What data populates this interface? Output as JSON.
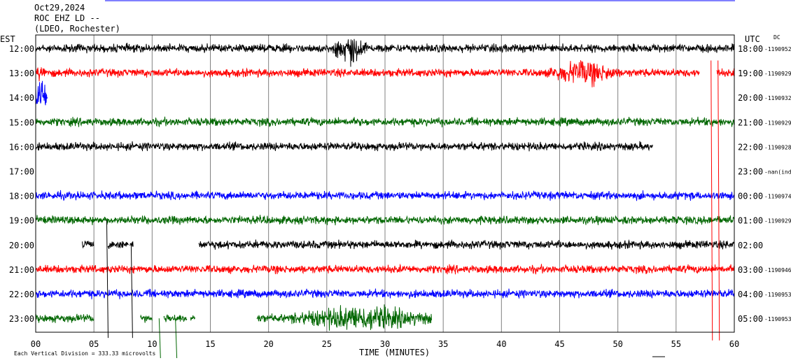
{
  "chart_data": {
    "type": "line",
    "title_lines": [
      "Oct29,2024",
      "ROC EHZ LD --",
      "(LDEO, Rochester)"
    ],
    "left_axis_label": "EST",
    "right_axis_label": "UTC",
    "right_corner_label": "DC",
    "xlabel": "TIME (MINUTES)",
    "xlim": [
      0,
      60
    ],
    "x_ticks": [
      "00",
      "05",
      "10",
      "15",
      "20",
      "25",
      "30",
      "35",
      "40",
      "45",
      "50",
      "55",
      "60"
    ],
    "footer_note": "Each Vertical Division = 333.33 microvolts",
    "grid": true,
    "colors": {
      "black": "#000000",
      "red": "#ff0000",
      "blue": "#0000ff",
      "green": "#006600",
      "grid": "#808080"
    },
    "rows": [
      {
        "est": "12:00",
        "utc": "18:00",
        "dc": "-1190952",
        "color": "black",
        "segments": [
          [
            0,
            60
          ]
        ],
        "amp": 1.0,
        "bursts": [
          {
            "start": 25.5,
            "end": 28.5,
            "amp": 4.0
          }
        ]
      },
      {
        "est": "13:00",
        "utc": "19:00",
        "dc": "-1190929",
        "color": "red",
        "segments": [
          [
            0,
            57
          ],
          [
            58.5,
            60
          ]
        ],
        "amp": 1.0,
        "bursts": [
          {
            "start": 44,
            "end": 50,
            "amp": 3.5
          },
          {
            "start": 0,
            "end": 1,
            "amp": 2.5
          }
        ]
      },
      {
        "est": "14:00",
        "utc": "20:00",
        "dc": "-1190932",
        "color": "blue",
        "segments": [
          [
            0,
            1
          ]
        ],
        "amp": 1.0,
        "bursts": [
          {
            "start": 0,
            "end": 1,
            "amp": 6.0
          }
        ]
      },
      {
        "est": "15:00",
        "utc": "21:00",
        "dc": "-1190929",
        "color": "green",
        "segments": [
          [
            0,
            60
          ]
        ],
        "amp": 1.0,
        "bursts": []
      },
      {
        "est": "16:00",
        "utc": "22:00",
        "dc": "-1190928",
        "color": "black",
        "segments": [
          [
            0,
            53
          ]
        ],
        "amp": 1.0,
        "bursts": []
      },
      {
        "est": "17:00",
        "utc": "23:00",
        "dc": "-nan(ind",
        "color": "red",
        "segments": [],
        "amp": 1.0,
        "bursts": []
      },
      {
        "est": "18:00",
        "utc": "00:00",
        "dc": "-1190974",
        "color": "blue",
        "segments": [
          [
            0,
            60
          ]
        ],
        "amp": 1.0,
        "bursts": []
      },
      {
        "est": "19:00",
        "utc": "01:00",
        "dc": "-1190929",
        "color": "green",
        "segments": [
          [
            0,
            60
          ]
        ],
        "amp": 1.0,
        "bursts": []
      },
      {
        "est": "20:00",
        "utc": "02:00",
        "dc": "",
        "color": "black",
        "segments": [
          [
            4,
            5
          ],
          [
            6.2,
            8
          ],
          [
            8.1,
            8.4
          ],
          [
            14,
            60
          ]
        ],
        "amp": 1.0,
        "bursts": []
      },
      {
        "est": "21:00",
        "utc": "03:00",
        "dc": "-1190946",
        "color": "red",
        "segments": [
          [
            0,
            60
          ]
        ],
        "amp": 1.0,
        "bursts": []
      },
      {
        "est": "22:00",
        "utc": "04:00",
        "dc": "-1190953",
        "color": "blue",
        "segments": [
          [
            0,
            60
          ]
        ],
        "amp": 1.0,
        "bursts": []
      },
      {
        "est": "23:00",
        "utc": "05:00",
        "dc": "-1190953",
        "color": "green",
        "segments": [
          [
            0,
            5
          ],
          [
            9,
            10
          ],
          [
            11,
            13
          ],
          [
            13.3,
            13.7
          ],
          [
            19,
            34
          ]
        ],
        "amp": 1.0,
        "bursts": [
          {
            "start": 22,
            "end": 34,
            "amp": 3.5
          }
        ]
      }
    ],
    "spikes": [
      {
        "x": 6.1,
        "from_row": 7,
        "to_row": 11.8,
        "color": "black"
      },
      {
        "x": 8.2,
        "from_row": 8,
        "to_row": 11.8,
        "color": "black"
      },
      {
        "x": 58.0,
        "from_row": 0.5,
        "to_row": 11.9,
        "color": "red"
      },
      {
        "x": 58.6,
        "from_row": 0.5,
        "to_row": 11.9,
        "color": "red"
      },
      {
        "x": 10.6,
        "from_row": 11,
        "to_row": 12.7,
        "color": "green"
      },
      {
        "x": 12.0,
        "from_row": 11,
        "to_row": 12.7,
        "color": "green"
      }
    ]
  }
}
